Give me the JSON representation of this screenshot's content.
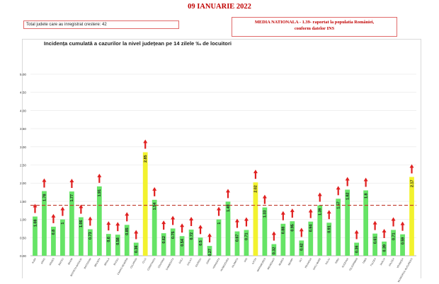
{
  "header": {
    "date": "09 IANUARIE 2022",
    "total_label": "Total judete care au inregistrat crestere: 42",
    "media_line1": "MEDIA NATIONALA  - 1.39-  raportat la populatia României,",
    "media_line2": "conform datelor INS"
  },
  "chart_data": {
    "type": "bar",
    "title": "Incidența cumulată a cazurilor la nivel județean pe 14 zilele ‰ de locuitori",
    "xlabel": "",
    "ylabel": "",
    "ylim": [
      0,
      5
    ],
    "yticks": [
      "0.00",
      "0.50",
      "1.00",
      "1.50",
      "2.00",
      "2.50",
      "3.00",
      "3.50",
      "4.00",
      "4.50",
      "5.00"
    ],
    "reference_line": {
      "value": 1.39,
      "color": "#c0392b",
      "style": "dashed"
    },
    "categories": [
      "ALBA",
      "ARAD",
      "ARGES",
      "BACAU",
      "BIHOR",
      "BISTRITA-NASAUD",
      "BOTOSANI",
      "BRASOV",
      "BRAILA",
      "BUZAU",
      "CARAS-SEVERIN",
      "CALARASI",
      "CLUJ",
      "CONSTANTA",
      "COVASNA",
      "DAMBOVITA",
      "DOLJ",
      "GALATI",
      "GIURGIU",
      "GORJ",
      "HARGHITA",
      "HUNEDOARA",
      "IALOMITA",
      "IASI",
      "ILFOV",
      "MARAMURES",
      "MEHEDINTI",
      "MURES",
      "NEAMT",
      "OLT",
      "PRAHOVA",
      "SATU MARE",
      "SALAJ",
      "SIBIU",
      "SUCEAVA",
      "TELEORMAN",
      "TIMIS",
      "TULCEA",
      "VASLUI",
      "VALCEA",
      "VRANCEA",
      "MUNICIPIUL BUCURESTI"
    ],
    "values": [
      1.08,
      1.78,
      0.8,
      1.0,
      1.77,
      1.06,
      0.73,
      1.91,
      0.6,
      0.58,
      0.85,
      0.36,
      2.85,
      1.54,
      0.62,
      0.75,
      0.54,
      0.72,
      0.5,
      0.27,
      1.0,
      1.49,
      0.67,
      0.71,
      2.02,
      1.33,
      0.32,
      0.88,
      0.95,
      0.42,
      0.94,
      1.39,
      0.91,
      1.57,
      1.82,
      0.36,
      1.8,
      0.61,
      0.39,
      0.71,
      0.59,
      2.17
    ],
    "labels": [
      "1.08",
      "1.78",
      "0.8",
      "1",
      "1.77",
      "1.06",
      "0.73",
      "1.91",
      "0.6",
      "0.58",
      "0.85",
      "0.36",
      "2.85",
      "1.54",
      "0.62",
      "0.75",
      "0.54",
      "0.72",
      "0.5",
      "0.27",
      "1",
      "1.49",
      "0.67",
      "0.71",
      "2.02",
      "1.33",
      "0.32",
      "0.88",
      "0.95",
      "0.42",
      "0.94",
      "1.39",
      "0.91",
      "1.57",
      "1.82",
      "0.36",
      "1.8",
      "0.61",
      "0.39",
      "0.71",
      "0.59",
      "2.17"
    ],
    "highlight": [
      12,
      24,
      41
    ],
    "colors": {
      "bar": "#66e466",
      "highlight": "#f2f22e",
      "arrow": "#e02020",
      "reference": "#c0392b",
      "grid": "#e6e6e6"
    }
  }
}
